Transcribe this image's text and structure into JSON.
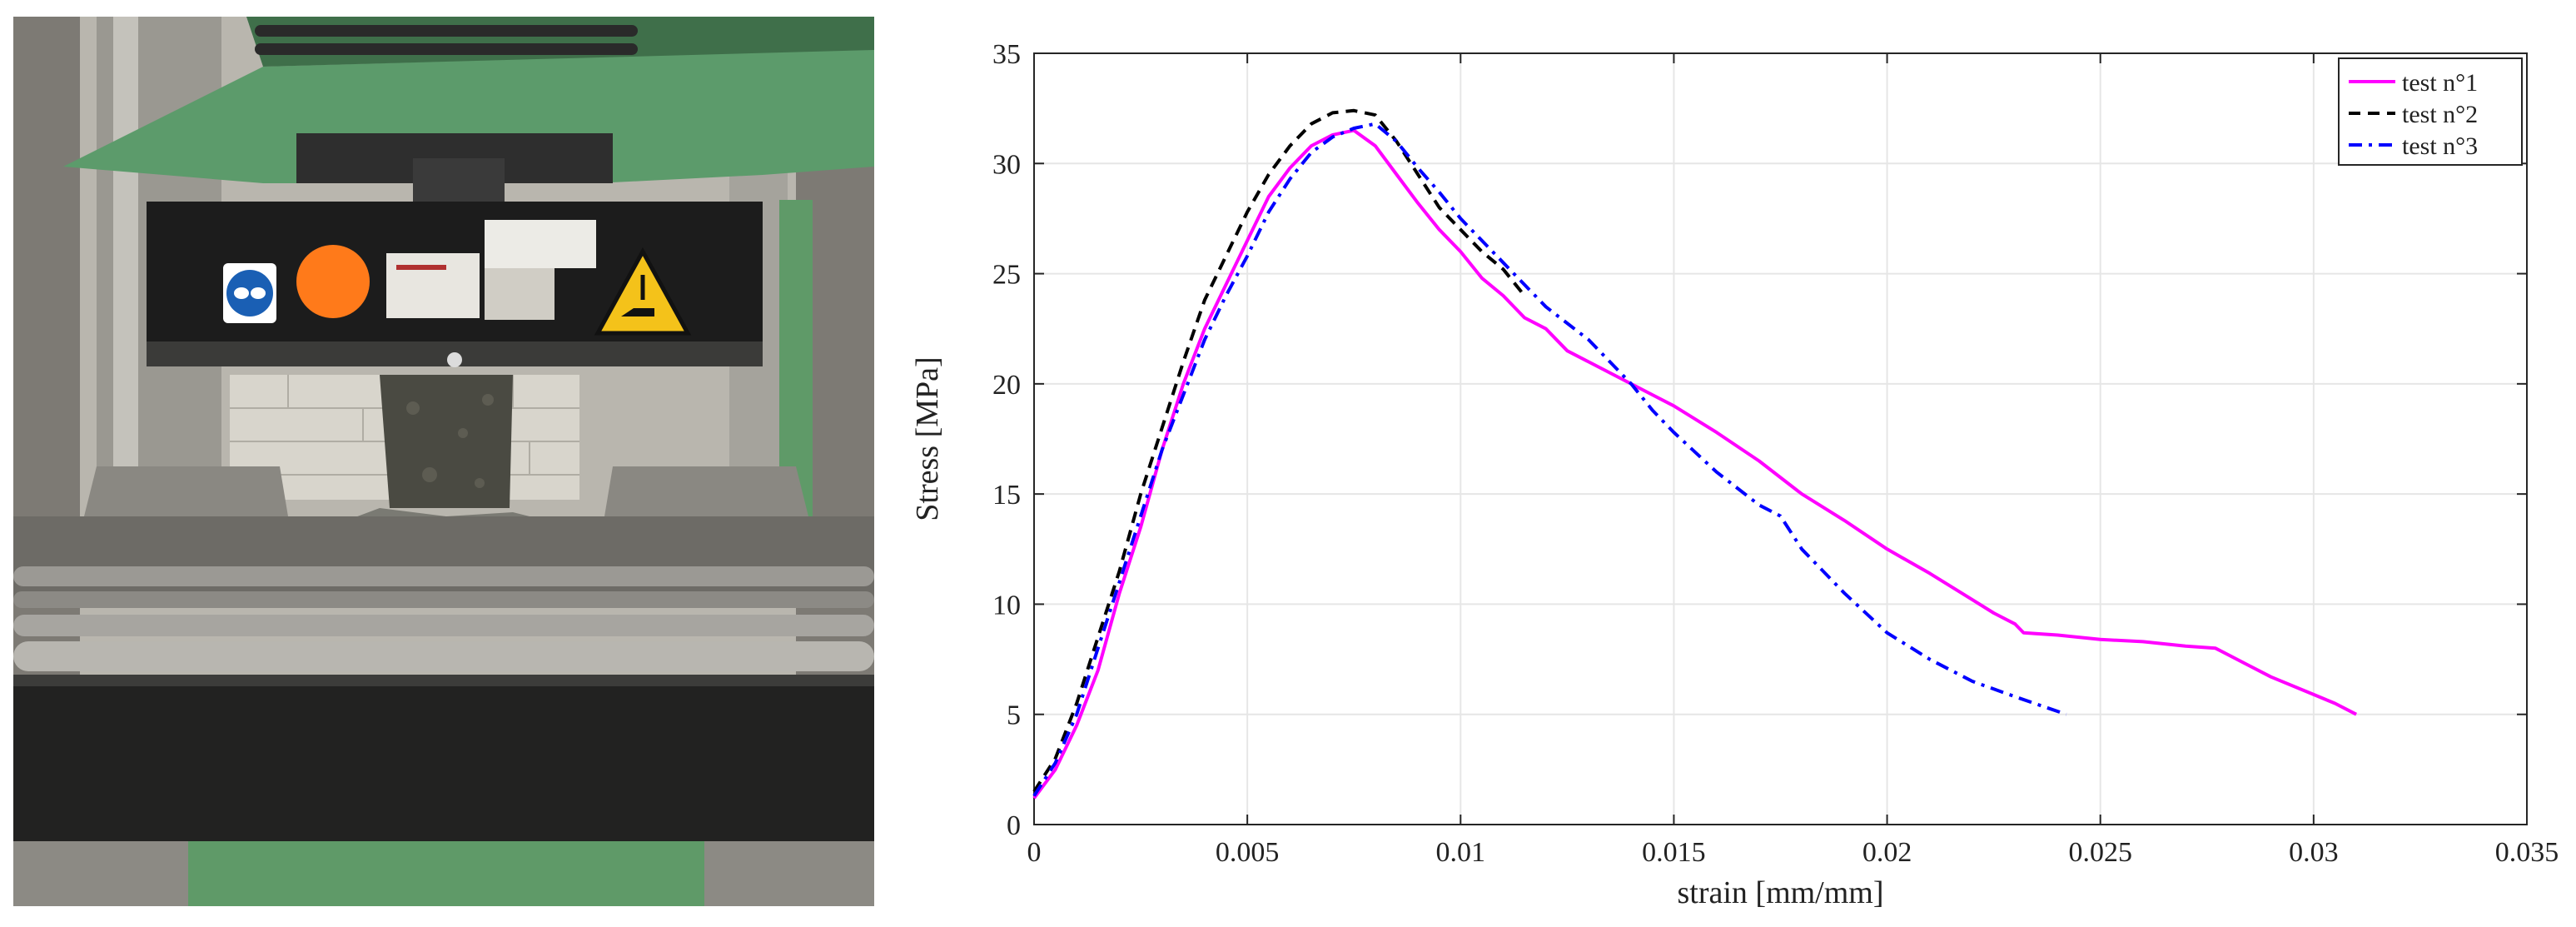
{
  "photo": {
    "description_icons": [
      "safety-goggles-sign-icon",
      "orange-dot-icon",
      "hand-crush-warning-icon"
    ],
    "colors": {
      "frame_green": "#5a9a6a",
      "plate_black": "#1c1c1c",
      "steel": "#8a8a86",
      "specimen": "#4a4a42"
    }
  },
  "chart_data": {
    "type": "line",
    "title": "",
    "xlabel": "strain [mm/mm]",
    "ylabel": "Stress [MPa]",
    "xlim": [
      0,
      0.035
    ],
    "ylim": [
      0,
      35
    ],
    "xticks": [
      0,
      0.005,
      0.01,
      0.015,
      0.02,
      0.025,
      0.03,
      0.035
    ],
    "xtick_labels": [
      "0",
      "0.005",
      "0.01",
      "0.015",
      "0.02",
      "0.025",
      "0.03",
      "0.035"
    ],
    "yticks": [
      0,
      5,
      10,
      15,
      20,
      25,
      30,
      35
    ],
    "ytick_labels": [
      "0",
      "5",
      "10",
      "15",
      "20",
      "25",
      "30",
      "35"
    ],
    "grid": true,
    "legend_position": "top-right",
    "series": [
      {
        "name": "test n°1",
        "color": "#ff00ff",
        "dash": "solid",
        "x": [
          0,
          0.0005,
          0.001,
          0.0015,
          0.002,
          0.0025,
          0.003,
          0.0035,
          0.004,
          0.0045,
          0.005,
          0.0055,
          0.006,
          0.0065,
          0.007,
          0.0075,
          0.008,
          0.0085,
          0.009,
          0.0095,
          0.01,
          0.0105,
          0.011,
          0.0115,
          0.012,
          0.0125,
          0.013,
          0.0135,
          0.014,
          0.0145,
          0.015,
          0.016,
          0.017,
          0.018,
          0.019,
          0.02,
          0.021,
          0.022,
          0.0225,
          0.023,
          0.0232,
          0.024,
          0.025,
          0.026,
          0.027,
          0.0277,
          0.0285,
          0.029,
          0.03,
          0.0305,
          0.031
        ],
        "y": [
          1.2,
          2.5,
          4.5,
          7.0,
          10.5,
          13.5,
          17.0,
          20.0,
          22.5,
          24.5,
          26.5,
          28.5,
          29.8,
          30.8,
          31.3,
          31.5,
          30.8,
          29.5,
          28.2,
          27.0,
          26.0,
          24.8,
          24.0,
          23.0,
          22.5,
          21.5,
          21.0,
          20.5,
          20.0,
          19.5,
          19.0,
          17.8,
          16.5,
          15.0,
          13.8,
          12.5,
          11.4,
          10.2,
          9.6,
          9.1,
          8.7,
          8.6,
          8.4,
          8.3,
          8.1,
          8.0,
          7.2,
          6.7,
          5.9,
          5.5,
          5.0
        ]
      },
      {
        "name": "test n°2",
        "color": "#000000",
        "dash": "dashed",
        "x": [
          0,
          0.0005,
          0.001,
          0.0015,
          0.002,
          0.0025,
          0.003,
          0.0035,
          0.004,
          0.0045,
          0.005,
          0.0055,
          0.006,
          0.0065,
          0.007,
          0.0075,
          0.008,
          0.0085,
          0.009,
          0.0095,
          0.01,
          0.0105,
          0.011,
          0.0115
        ],
        "y": [
          1.5,
          3.0,
          5.5,
          8.5,
          11.5,
          15.0,
          18.0,
          21.0,
          23.8,
          25.8,
          27.8,
          29.5,
          30.8,
          31.8,
          32.3,
          32.4,
          32.2,
          31.0,
          29.5,
          28.0,
          27.0,
          26.0,
          25.2,
          24.0
        ]
      },
      {
        "name": "test n°3",
        "color": "#0000ff",
        "dash": "dashdot",
        "x": [
          0,
          0.0005,
          0.001,
          0.0015,
          0.002,
          0.0025,
          0.003,
          0.0035,
          0.004,
          0.0045,
          0.005,
          0.0055,
          0.006,
          0.0065,
          0.007,
          0.0075,
          0.008,
          0.0085,
          0.009,
          0.0095,
          0.01,
          0.011,
          0.012,
          0.013,
          0.0135,
          0.014,
          0.0145,
          0.015,
          0.016,
          0.017,
          0.0175,
          0.018,
          0.019,
          0.02,
          0.021,
          0.022,
          0.023,
          0.0242
        ],
        "y": [
          1.3,
          2.8,
          5.0,
          8.0,
          11.0,
          14.0,
          17.0,
          19.5,
          22.0,
          24.0,
          25.8,
          27.8,
          29.3,
          30.5,
          31.2,
          31.6,
          31.8,
          31.0,
          29.8,
          28.7,
          27.5,
          25.5,
          23.5,
          22.0,
          21.0,
          20.0,
          18.8,
          17.8,
          16.0,
          14.5,
          14.0,
          12.5,
          10.5,
          8.7,
          7.5,
          6.5,
          5.8,
          5.0
        ]
      }
    ]
  }
}
